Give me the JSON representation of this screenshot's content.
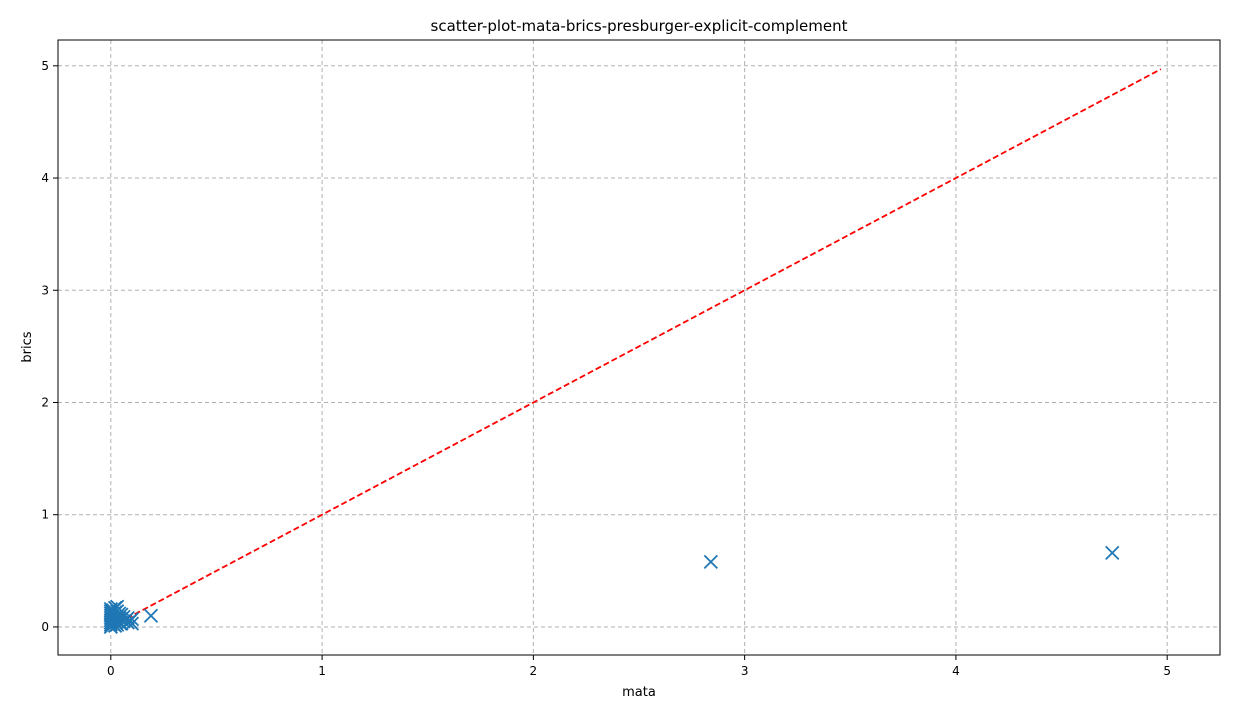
{
  "chart_data": {
    "type": "scatter",
    "title": "scatter-plot-mata-brics-presburger-explicit-complement",
    "xlabel": "mata",
    "ylabel": "brics",
    "xlim": [
      -0.25,
      5.25
    ],
    "ylim": [
      -0.25,
      5.23
    ],
    "xticks": [
      0,
      1,
      2,
      3,
      4,
      5
    ],
    "yticks": [
      0,
      1,
      2,
      3,
      4,
      5
    ],
    "grid": true,
    "marker": "x",
    "colors": {
      "points": "#1f77b4",
      "diagonal": "#ff0000"
    },
    "diagonal": {
      "x": [
        0,
        4.97
      ],
      "y": [
        0,
        4.97
      ]
    },
    "series": [
      {
        "values": [
          {
            "x": 0.0,
            "y": 0.0
          },
          {
            "x": 0.0,
            "y": 0.02
          },
          {
            "x": 0.0,
            "y": 0.04
          },
          {
            "x": 0.0,
            "y": 0.06
          },
          {
            "x": 0.0,
            "y": 0.08
          },
          {
            "x": 0.0,
            "y": 0.1
          },
          {
            "x": 0.0,
            "y": 0.12
          },
          {
            "x": 0.0,
            "y": 0.14
          },
          {
            "x": 0.0,
            "y": 0.16
          },
          {
            "x": 0.01,
            "y": 0.03
          },
          {
            "x": 0.01,
            "y": 0.07
          },
          {
            "x": 0.01,
            "y": 0.11
          },
          {
            "x": 0.01,
            "y": 0.15
          },
          {
            "x": 0.02,
            "y": 0.01
          },
          {
            "x": 0.02,
            "y": 0.05
          },
          {
            "x": 0.02,
            "y": 0.09
          },
          {
            "x": 0.02,
            "y": 0.13
          },
          {
            "x": 0.02,
            "y": 0.17
          },
          {
            "x": 0.03,
            "y": 0.02
          },
          {
            "x": 0.03,
            "y": 0.06
          },
          {
            "x": 0.03,
            "y": 0.1
          },
          {
            "x": 0.03,
            "y": 0.14
          },
          {
            "x": 0.03,
            "y": 0.18
          },
          {
            "x": 0.04,
            "y": 0.04
          },
          {
            "x": 0.04,
            "y": 0.08
          },
          {
            "x": 0.04,
            "y": 0.12
          },
          {
            "x": 0.05,
            "y": 0.03
          },
          {
            "x": 0.05,
            "y": 0.07
          },
          {
            "x": 0.05,
            "y": 0.11
          },
          {
            "x": 0.06,
            "y": 0.05
          },
          {
            "x": 0.06,
            "y": 0.09
          },
          {
            "x": 0.07,
            "y": 0.06
          },
          {
            "x": 0.08,
            "y": 0.04
          },
          {
            "x": 0.08,
            "y": 0.08
          },
          {
            "x": 0.09,
            "y": 0.05
          },
          {
            "x": 0.1,
            "y": 0.03
          },
          {
            "x": 0.1,
            "y": 0.07
          },
          {
            "x": 0.19,
            "y": 0.1
          },
          {
            "x": 2.84,
            "y": 0.58
          },
          {
            "x": 4.74,
            "y": 0.66
          }
        ]
      }
    ]
  }
}
